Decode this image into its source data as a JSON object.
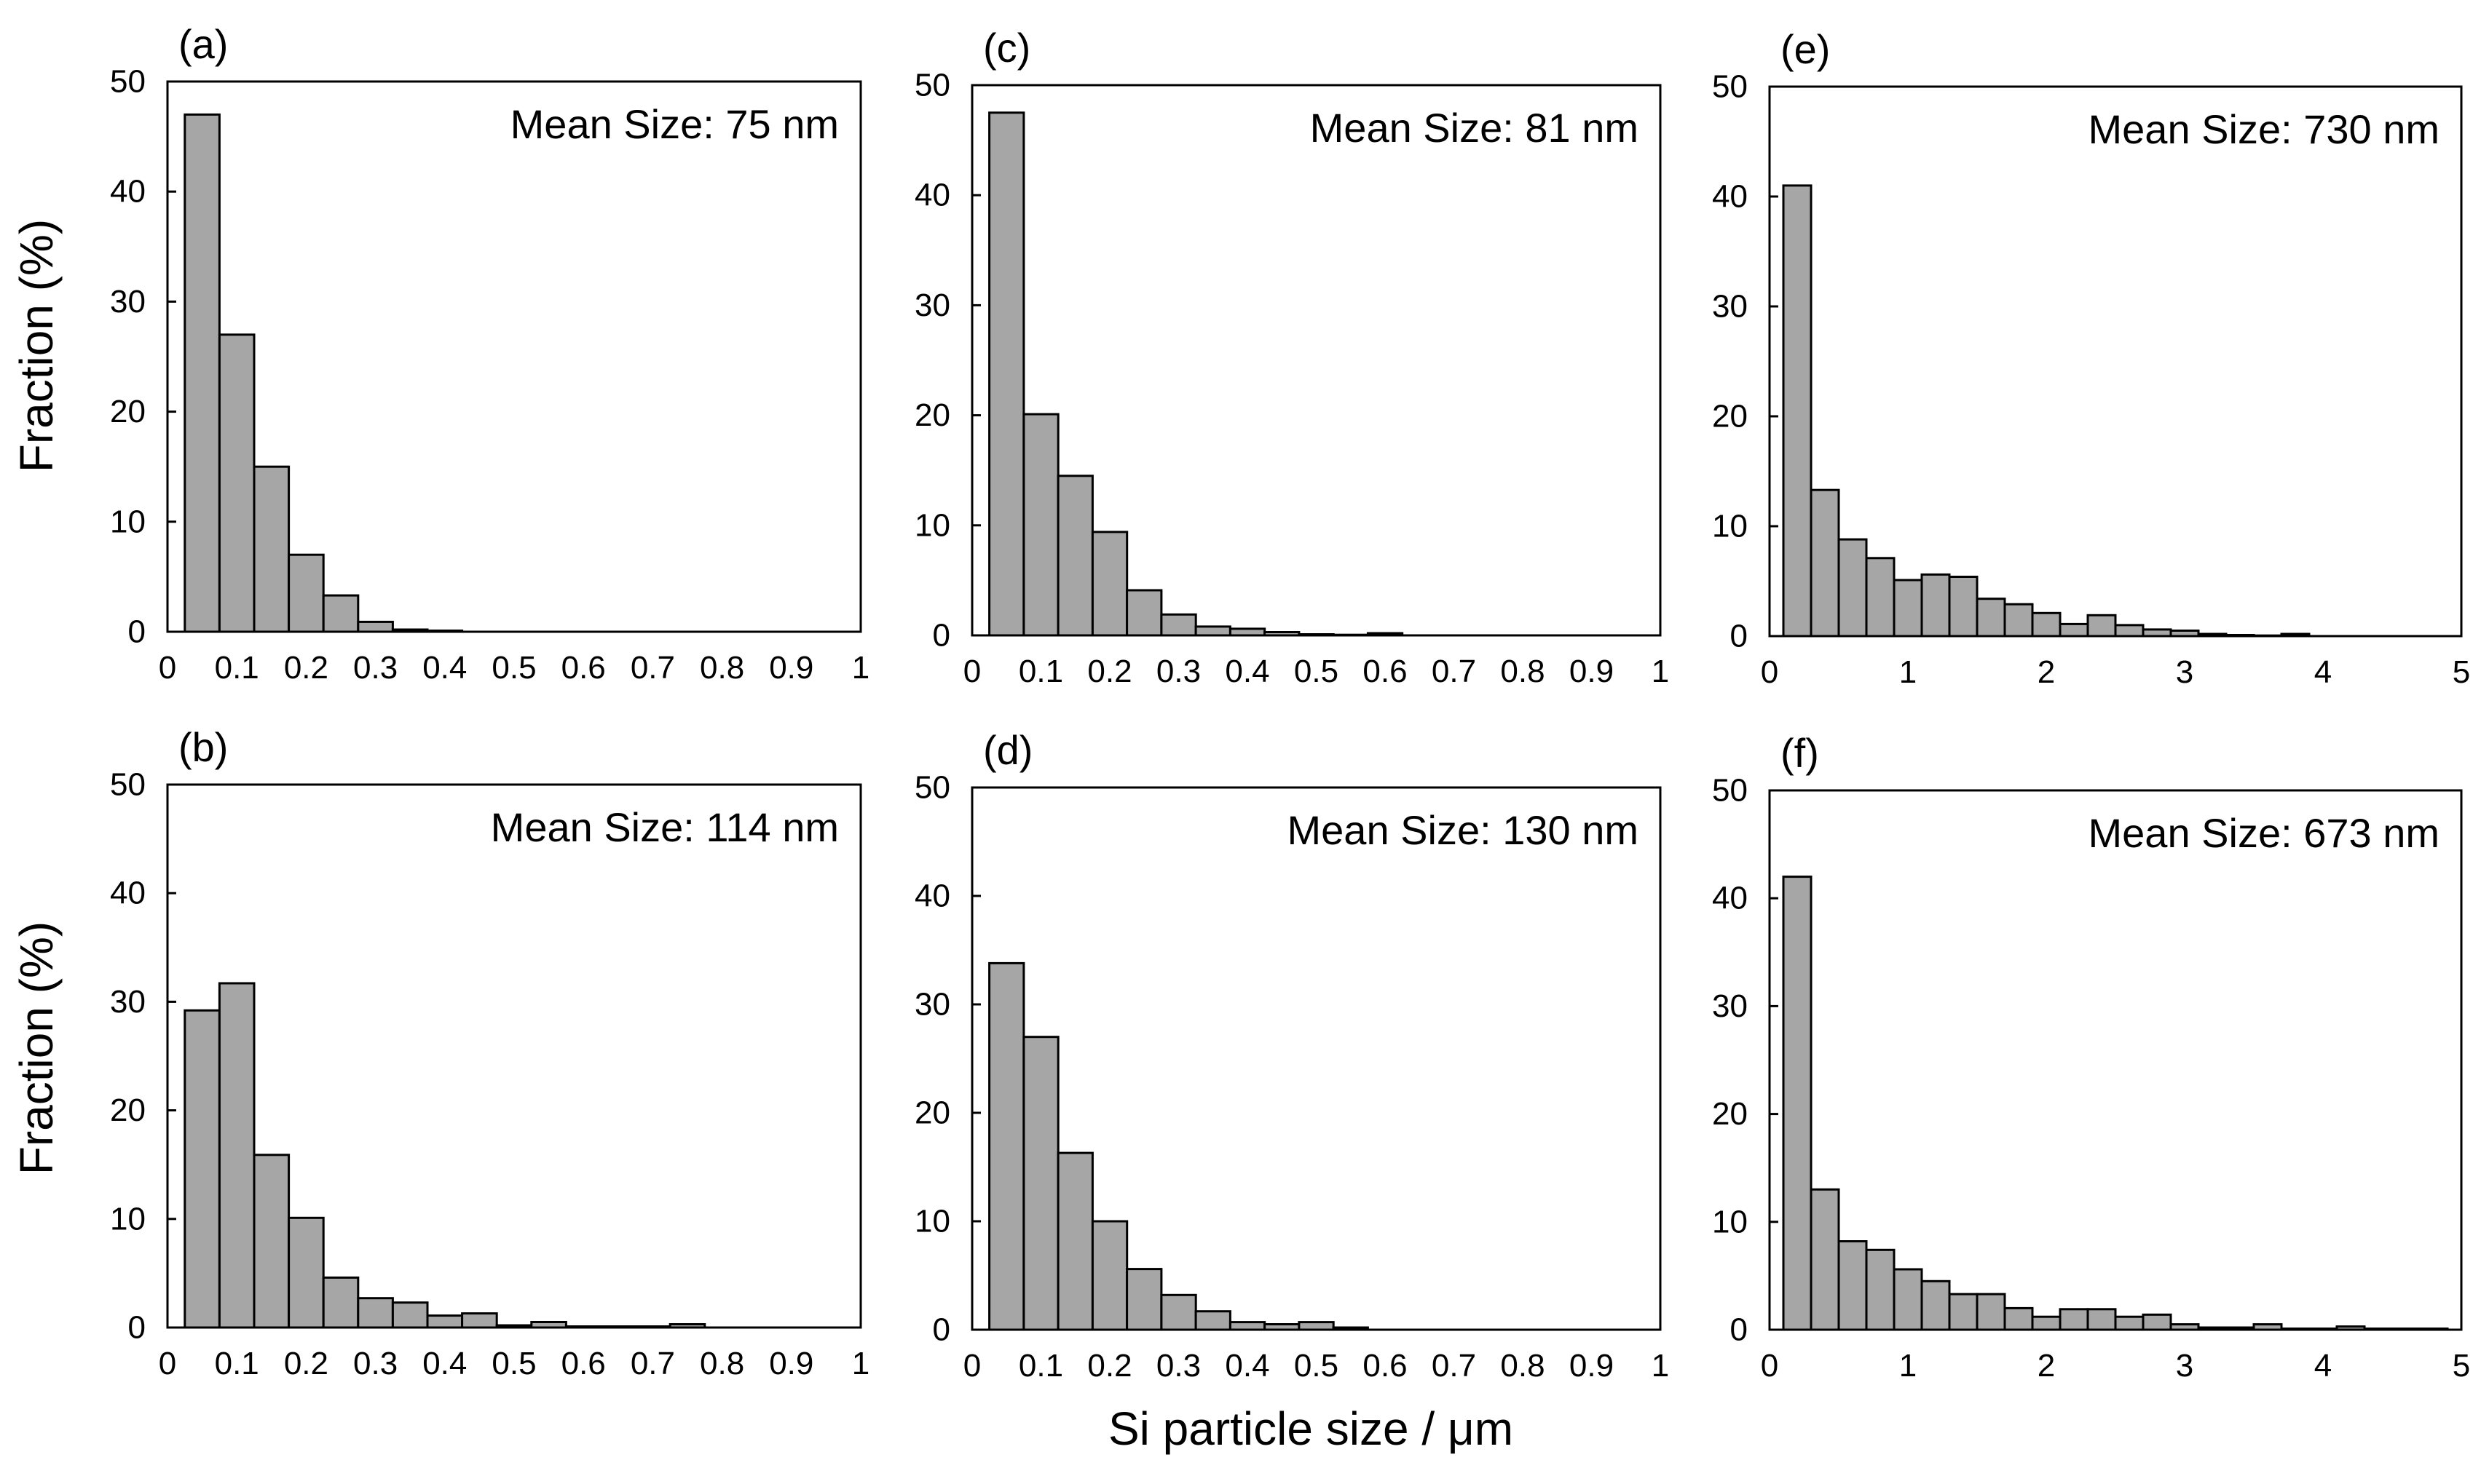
{
  "figure": {
    "xlabel": "Si particle size / μm",
    "ylabel": "Fraction (%)"
  },
  "chart_data": [
    {
      "type": "bar",
      "panel": "(a)",
      "annotation": "Mean Size: 75 nm",
      "xlim": [
        0,
        1
      ],
      "ylim": [
        0,
        50
      ],
      "xticks": [
        "0",
        "0.1",
        "0.2",
        "0.3",
        "0.4",
        "0.5",
        "0.6",
        "0.7",
        "0.8",
        "0.9",
        "1"
      ],
      "yticks": [
        "0",
        "10",
        "20",
        "30",
        "40",
        "50"
      ],
      "bin_width": 0.05,
      "bin_starts": [
        0.025,
        0.075,
        0.125,
        0.175,
        0.225,
        0.275,
        0.325,
        0.375
      ],
      "values": [
        47,
        27,
        15,
        7,
        3.3,
        0.9,
        0.2,
        0.1
      ]
    },
    {
      "type": "bar",
      "panel": "(b)",
      "annotation": "Mean Size: 114 nm",
      "xlim": [
        0,
        1
      ],
      "ylim": [
        0,
        50
      ],
      "xticks": [
        "0",
        "0.1",
        "0.2",
        "0.3",
        "0.4",
        "0.5",
        "0.6",
        "0.7",
        "0.8",
        "0.9",
        "1"
      ],
      "yticks": [
        "0",
        "10",
        "20",
        "30",
        "40",
        "50"
      ],
      "bin_width": 0.05,
      "bin_starts": [
        0.025,
        0.075,
        0.125,
        0.175,
        0.225,
        0.275,
        0.325,
        0.375,
        0.425,
        0.475,
        0.525,
        0.575,
        0.625,
        0.675,
        0.725
      ],
      "values": [
        29.2,
        31.7,
        15.9,
        10.1,
        4.6,
        2.7,
        2.3,
        1.1,
        1.3,
        0.2,
        0.5,
        0.1,
        0.1,
        0.1,
        0.3
      ]
    },
    {
      "type": "bar",
      "panel": "(c)",
      "annotation": "Mean Size: 81 nm",
      "xlim": [
        0,
        1
      ],
      "ylim": [
        0,
        50
      ],
      "xticks": [
        "0",
        "0.1",
        "0.2",
        "0.3",
        "0.4",
        "0.5",
        "0.6",
        "0.7",
        "0.8",
        "0.9",
        "1"
      ],
      "yticks": [
        "0",
        "10",
        "20",
        "30",
        "40",
        "50"
      ],
      "bin_width": 0.05,
      "bin_starts": [
        0.025,
        0.075,
        0.125,
        0.175,
        0.225,
        0.275,
        0.325,
        0.375,
        0.425,
        0.475,
        0.525,
        0.575
      ],
      "values": [
        47.5,
        20.1,
        14.5,
        9.4,
        4.1,
        1.9,
        0.8,
        0.6,
        0.3,
        0.1,
        0.05,
        0.2
      ]
    },
    {
      "type": "bar",
      "panel": "(d)",
      "annotation": "Mean Size: 130 nm",
      "xlim": [
        0,
        1
      ],
      "ylim": [
        0,
        50
      ],
      "xticks": [
        "0",
        "0.1",
        "0.2",
        "0.3",
        "0.4",
        "0.5",
        "0.6",
        "0.7",
        "0.8",
        "0.9",
        "1"
      ],
      "yticks": [
        "0",
        "10",
        "20",
        "30",
        "40",
        "50"
      ],
      "bin_width": 0.05,
      "bin_starts": [
        0.025,
        0.075,
        0.125,
        0.175,
        0.225,
        0.275,
        0.325,
        0.375,
        0.425,
        0.475,
        0.525
      ],
      "values": [
        33.8,
        27,
        16.3,
        10,
        5.6,
        3.2,
        1.7,
        0.7,
        0.5,
        0.7,
        0.2
      ]
    },
    {
      "type": "bar",
      "panel": "(e)",
      "annotation": "Mean Size: 730 nm",
      "xlim": [
        0,
        5
      ],
      "ylim": [
        0,
        50
      ],
      "xticks": [
        "0",
        "1",
        "2",
        "3",
        "4",
        "5"
      ],
      "yticks": [
        "0",
        "10",
        "20",
        "30",
        "40",
        "50"
      ],
      "bin_width": 0.2,
      "bin_starts": [
        0.1,
        0.3,
        0.5,
        0.7,
        0.9,
        1.1,
        1.3,
        1.5,
        1.7,
        1.9,
        2.1,
        2.3,
        2.5,
        2.7,
        2.9,
        3.1,
        3.3,
        3.5,
        3.7
      ],
      "values": [
        41,
        13.3,
        8.8,
        7.1,
        5.1,
        5.6,
        5.4,
        3.4,
        2.9,
        2.1,
        1.1,
        1.9,
        1,
        0.6,
        0.5,
        0.2,
        0.1,
        0.05,
        0.2
      ]
    },
    {
      "type": "bar",
      "panel": "(f)",
      "annotation": "Mean Size: 673 nm",
      "xlim": [
        0,
        5
      ],
      "ylim": [
        0,
        50
      ],
      "xticks": [
        "0",
        "1",
        "2",
        "3",
        "4",
        "5"
      ],
      "yticks": [
        "0",
        "10",
        "20",
        "30",
        "40",
        "50"
      ],
      "bin_width": 0.2,
      "bin_starts": [
        0.1,
        0.3,
        0.5,
        0.7,
        0.9,
        1.1,
        1.3,
        1.5,
        1.7,
        1.9,
        2.1,
        2.3,
        2.5,
        2.7,
        2.9,
        3.1,
        3.3,
        3.5,
        3.7,
        3.9,
        4.1,
        4.3,
        4.5,
        4.7
      ],
      "values": [
        42,
        13,
        8.2,
        7.4,
        5.6,
        4.5,
        3.3,
        3.3,
        2,
        1.2,
        1.9,
        1.9,
        1.2,
        1.4,
        0.5,
        0.2,
        0.2,
        0.5,
        0.1,
        0.1,
        0.3,
        0.1,
        0.1,
        0.1
      ]
    }
  ]
}
